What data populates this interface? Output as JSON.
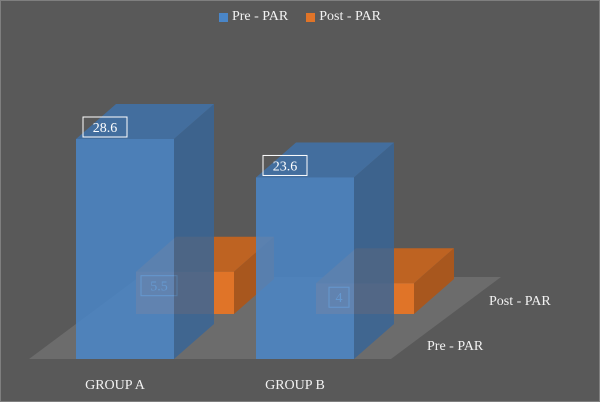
{
  "chart_data": {
    "type": "bar",
    "style": "3d-clustered-depth",
    "categories": [
      "GROUP A",
      "GROUP B"
    ],
    "series": [
      {
        "name": "Pre - PAR",
        "values": [
          28.6,
          23.6
        ],
        "color": "#4a86c8"
      },
      {
        "name": "Post - PAR",
        "values": [
          5.5,
          4
        ],
        "color": "#e07428"
      }
    ],
    "depth_labels": [
      "Post - PAR",
      "Pre - PAR"
    ],
    "legend_position": "top",
    "grid": false,
    "background": "#595959",
    "floor_color": "#6e6e6e"
  }
}
